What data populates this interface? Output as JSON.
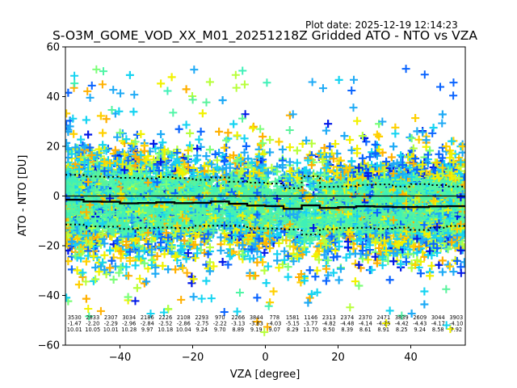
{
  "chart_data": {
    "type": "scatter",
    "title": "S-O3M_GOME_VOD_XX_M01_20251218Z Gridded ATO - NTO vs VZA",
    "subtitle": "Plot date: 2025-12-19 12:14:23",
    "xlabel": "VZA [degree]",
    "ylabel": "ATO - NTO [DU]",
    "xlim": [
      -55,
      55
    ],
    "ylim": [
      -60,
      60
    ],
    "xticks": [
      -40,
      -20,
      0,
      20,
      40
    ],
    "yticks": [
      -60,
      -40,
      -20,
      0,
      20,
      40,
      60
    ],
    "xtick_labels": [
      "−40",
      "−20",
      "0",
      "20",
      "40"
    ],
    "ytick_labels": [
      "−60",
      "−40",
      "−20",
      "0",
      "20",
      "40",
      "60"
    ],
    "grid": false,
    "marker": "plus",
    "reference_line_y": 0,
    "bin_stats": {
      "bin_centers": [
        -52.5,
        -47.5,
        -42.5,
        -37.5,
        -32.5,
        -27.5,
        -22.5,
        -17.5,
        -12.5,
        -7.5,
        -2.5,
        2.5,
        7.5,
        12.5,
        17.5,
        22.5,
        27.5,
        32.5,
        37.5,
        42.5,
        47.5,
        52.5
      ],
      "count": [
        3530,
        2833,
        2307,
        3034,
        2186,
        2226,
        2108,
        2293,
        970,
        2266,
        3844,
        778,
        1581,
        1146,
        2313,
        2374,
        2370,
        2471,
        3839,
        2609,
        3044,
        3903
      ],
      "count_labels": [
        "3530",
        "2833",
        "2307",
        "3034",
        "2186",
        "2226",
        "2108",
        "2293",
        "970",
        "2266",
        "3844",
        "778",
        "1581",
        "1146",
        "2313",
        "2374",
        "2370",
        "2471",
        "3839",
        "2609",
        "3044",
        "3903"
      ],
      "mean": [
        -1.47,
        -2.2,
        -2.29,
        -2.96,
        -2.84,
        -2.52,
        -2.86,
        -2.75,
        -2.22,
        -3.13,
        -3.83,
        -4.03,
        -5.15,
        -3.77,
        -4.82,
        -4.48,
        -4.14,
        -4.25,
        -4.42,
        -4.43,
        -4.17,
        -4.1
      ],
      "mean_labels": [
        "-1.47",
        "-2.20",
        "-2.29",
        "-2.96",
        "-2.84",
        "-2.52",
        "-2.86",
        "-2.75",
        "-2.22",
        "-3.13",
        "-3.83",
        "-4.03",
        "-5.15",
        "-3.77",
        "-4.82",
        "-4.48",
        "-4.14",
        "-4.25",
        "-4.42",
        "-4.43",
        "-4.17",
        "-4.10"
      ],
      "std": [
        10.01,
        10.05,
        10.01,
        10.28,
        9.97,
        10.18,
        10.04,
        9.24,
        9.7,
        8.89,
        9.19,
        9.07,
        8.29,
        11.7,
        8.5,
        8.39,
        8.61,
        8.91,
        8.25,
        9.24,
        8.58,
        7.92
      ],
      "std_labels": [
        "10.01",
        "10.05",
        "10.01",
        "10.28",
        "9.97",
        "10.18",
        "10.04",
        "9.24",
        "9.70",
        "8.89",
        "9.19",
        "9.07",
        "8.29",
        "11.70",
        "8.50",
        "8.39",
        "8.61",
        "8.91",
        "8.25",
        "9.24",
        "8.58",
        "7.92"
      ]
    },
    "series": [
      {
        "name": "mean",
        "style": "solid",
        "color": "#000000"
      },
      {
        "name": "mean + std",
        "style": "dotted",
        "color": "#000000"
      },
      {
        "name": "mean - std",
        "style": "dotted",
        "color": "#000000"
      }
    ],
    "point_colors": [
      "#50f5a6",
      "#58f39c",
      "#3ff0b8",
      "#16d4f2",
      "#1eaaf6",
      "#0a64ff",
      "#0018e8",
      "#f2f200",
      "#ffd000",
      "#ffb000",
      "#b8ff3c",
      "#7cff78"
    ]
  }
}
